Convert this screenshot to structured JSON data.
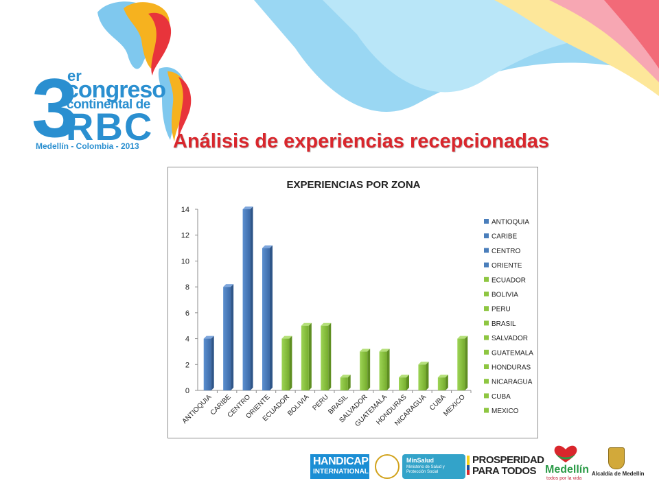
{
  "header": {
    "logo": {
      "number": "3",
      "superscript": "er",
      "line1": "congreso",
      "line2": "continental de",
      "line3": "RBC",
      "line4": "Medellín - Colombia - 2013"
    },
    "headline": "Análisis de experiencias recepcionadas"
  },
  "colors": {
    "series_blue": "#4a7ebb",
    "series_green": "#8ec641",
    "headline_red": "#d9262c",
    "logo_blue": "#2a8fd0"
  },
  "chart_data": {
    "type": "bar",
    "title": "EXPERIENCIAS POR ZONA",
    "xlabel": "",
    "ylabel": "",
    "ylim": [
      0,
      14
    ],
    "yticks": [
      0,
      2,
      4,
      6,
      8,
      10,
      12,
      14
    ],
    "grid": false,
    "legend_position": "right",
    "categories": [
      "ANTIOQUIA",
      "CARIBE",
      "CENTRO",
      "ORIENTE",
      "ECUADOR",
      "BOLIVIA",
      "PERU",
      "BRASIL",
      "SALVADOR",
      "GUATEMALA",
      "HONDURAS",
      "NICARAGUA",
      "CUBA",
      "MEXICO"
    ],
    "values": [
      4,
      8,
      14,
      11,
      4,
      5,
      5,
      1,
      3,
      3,
      1,
      2,
      1,
      4
    ],
    "bar_colors": [
      "#4a7ebb",
      "#4a7ebb",
      "#4a7ebb",
      "#4a7ebb",
      "#8ec641",
      "#8ec641",
      "#8ec641",
      "#8ec641",
      "#8ec641",
      "#8ec641",
      "#8ec641",
      "#8ec641",
      "#8ec641",
      "#8ec641"
    ]
  },
  "footer": {
    "handicap_line1": "HANDICAP",
    "handicap_line2": "INTERNATIONAL",
    "minsalud": "MinSalud",
    "minsalud_sub": "Ministerio de Salud y Protección Social",
    "prosperidad_line1": "PROSPERIDAD",
    "prosperidad_line2": "PARA TODOS",
    "medellin": "Medellín",
    "medellin_sub": "todos por la vida",
    "alcaldia": "Alcaldía de Medellín"
  }
}
